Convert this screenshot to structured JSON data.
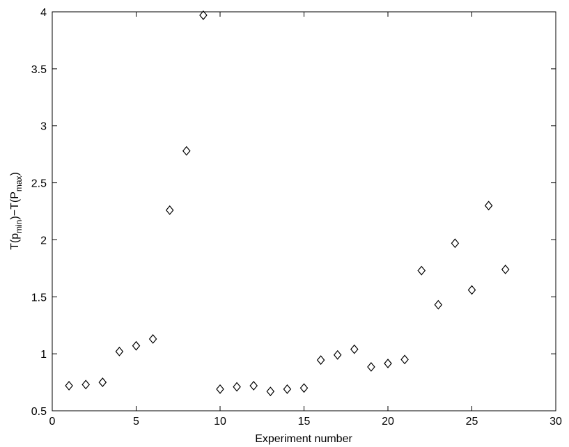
{
  "chart_data": {
    "type": "scatter",
    "x_label": "Experiment number",
    "y_label": [
      "T(p",
      "min",
      ")−T(P",
      "max",
      ")"
    ],
    "x": [
      1,
      2,
      3,
      4,
      5,
      6,
      7,
      8,
      9,
      10,
      11,
      12,
      13,
      14,
      15,
      16,
      17,
      18,
      19,
      20,
      21,
      22,
      23,
      24,
      25,
      26,
      27
    ],
    "values": [
      0.72,
      0.73,
      0.75,
      1.02,
      1.07,
      1.13,
      2.26,
      2.78,
      3.97,
      0.69,
      0.71,
      0.72,
      0.67,
      0.69,
      0.7,
      0.945,
      0.99,
      1.04,
      0.885,
      0.915,
      0.95,
      1.73,
      1.43,
      1.97,
      1.56,
      2.3,
      1.74
    ],
    "color": "#000000",
    "xlim": [
      0,
      30
    ],
    "xticks": [
      0,
      5,
      10,
      15,
      20,
      25,
      30
    ],
    "ylim": [
      0.5,
      4
    ],
    "yticks": [
      0.5,
      1,
      1.5,
      2,
      2.5,
      3,
      3.5,
      4
    ]
  }
}
